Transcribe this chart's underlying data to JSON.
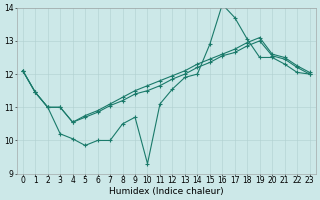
{
  "xlabel": "Humidex (Indice chaleur)",
  "xlim": [
    -0.5,
    23.5
  ],
  "ylim": [
    9,
    14
  ],
  "xticks": [
    0,
    1,
    2,
    3,
    4,
    5,
    6,
    7,
    8,
    9,
    10,
    11,
    12,
    13,
    14,
    15,
    16,
    17,
    18,
    19,
    20,
    21,
    22,
    23
  ],
  "yticks": [
    9,
    10,
    11,
    12,
    13,
    14
  ],
  "background_color": "#cce8e8",
  "grid_color": "#b0d0d0",
  "line_color": "#1a7a6a",
  "line1_y": [
    12.1,
    11.45,
    11.0,
    10.2,
    10.05,
    9.85,
    10.0,
    10.0,
    10.5,
    10.7,
    9.3,
    11.1,
    11.55,
    11.9,
    12.0,
    12.9,
    14.1,
    13.7,
    13.05,
    12.5,
    12.5,
    12.3,
    12.05,
    12.0
  ],
  "line2_y": [
    12.1,
    11.45,
    11.0,
    11.0,
    10.55,
    10.7,
    10.85,
    11.05,
    11.2,
    11.4,
    11.5,
    11.65,
    11.85,
    12.0,
    12.2,
    12.35,
    12.55,
    12.65,
    12.85,
    13.0,
    12.55,
    12.45,
    12.2,
    12.0
  ],
  "line3_y": [
    12.1,
    11.45,
    11.0,
    11.0,
    10.55,
    10.75,
    10.9,
    11.1,
    11.3,
    11.5,
    11.65,
    11.8,
    11.95,
    12.1,
    12.3,
    12.45,
    12.6,
    12.75,
    12.95,
    13.1,
    12.6,
    12.5,
    12.25,
    12.05
  ],
  "tick_fontsize": 5.5,
  "xlabel_fontsize": 6.5,
  "linewidth": 0.8,
  "markersize": 2.8
}
